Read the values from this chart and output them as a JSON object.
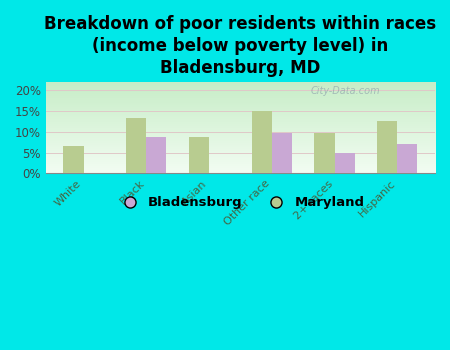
{
  "title": "Breakdown of poor residents within races\n(income below poverty level) in\nBladensburg, MD",
  "categories": [
    "White",
    "Black",
    "Asian",
    "Other race",
    "2+ races",
    "Hispanic"
  ],
  "bladensburg_values": [
    0.0,
    8.8,
    0.0,
    9.7,
    4.8,
    7.0
  ],
  "maryland_values": [
    6.6,
    13.2,
    8.7,
    15.0,
    9.7,
    12.7
  ],
  "bladensburg_color": "#c9a8d4",
  "maryland_color": "#b8cc90",
  "background_color": "#00e8e8",
  "plot_bg_color": "#d8efd8",
  "ylim": [
    0,
    22
  ],
  "yticks": [
    0,
    5,
    10,
    15,
    20
  ],
  "ytick_labels": [
    "0%",
    "5%",
    "10%",
    "15%",
    "20%"
  ],
  "title_fontsize": 12,
  "bar_width": 0.32,
  "legend_labels": [
    "Bladensburg",
    "Maryland"
  ],
  "watermark": "City-Data.com"
}
